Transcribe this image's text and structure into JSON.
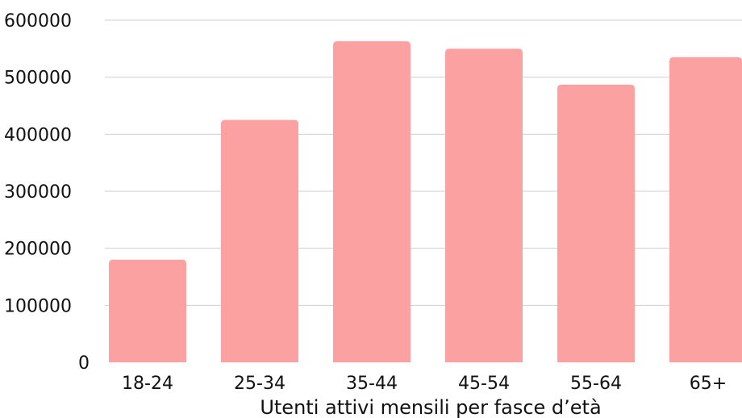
{
  "chart_data": {
    "type": "bar",
    "title": "",
    "xlabel": "Utenti attivi mensili per fasce d’età",
    "ylabel": "",
    "categories": [
      "18-24",
      "25-34",
      "35-44",
      "45-54",
      "55-64",
      "65+"
    ],
    "values": [
      180000,
      425000,
      563000,
      550000,
      487000,
      535000
    ],
    "ylim": [
      0,
      600000
    ],
    "yticks": [
      "0",
      "100000",
      "200000",
      "300000",
      "400000",
      "500000",
      "600000"
    ],
    "grid": "horizontal",
    "legend": "none",
    "bar_color": "#fca1a2",
    "grid_color": "#cfcfcf"
  }
}
